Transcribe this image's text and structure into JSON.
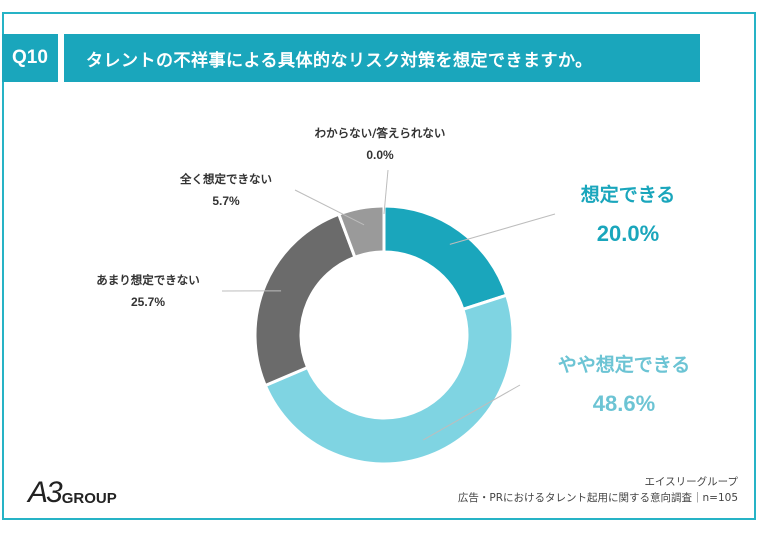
{
  "header": {
    "question_number": "Q10",
    "question_text": "タレントの不祥事による具体的なリスク対策を想定できますか。"
  },
  "colors": {
    "accent": "#1aa6bc",
    "frame": "#26b3c6"
  },
  "chart_data": {
    "type": "pie",
    "variant": "donut",
    "slices": [
      {
        "label": "想定できる",
        "value": 20.0,
        "value_label": "20.0%",
        "color": "#1aa6bc"
      },
      {
        "label": "やや想定できる",
        "value": 48.6,
        "value_label": "48.6%",
        "color": "#7fd4e2"
      },
      {
        "label": "あまり想定できない",
        "value": 25.7,
        "value_label": "25.7%",
        "color": "#6b6b6b"
      },
      {
        "label": "全く想定できない",
        "value": 5.7,
        "value_label": "5.7%",
        "color": "#9a9a9a"
      },
      {
        "label": "わからない/答えられない",
        "value": 0.0,
        "value_label": "0.0%",
        "color": "#cfcfcf"
      }
    ]
  },
  "footer": {
    "logo_text": "GROUP",
    "logo_mark_text": "A3",
    "source_org": "エイスリーグループ",
    "survey_name": "広告・PRにおけるタレント起用に関する意向調査｜n=105"
  }
}
